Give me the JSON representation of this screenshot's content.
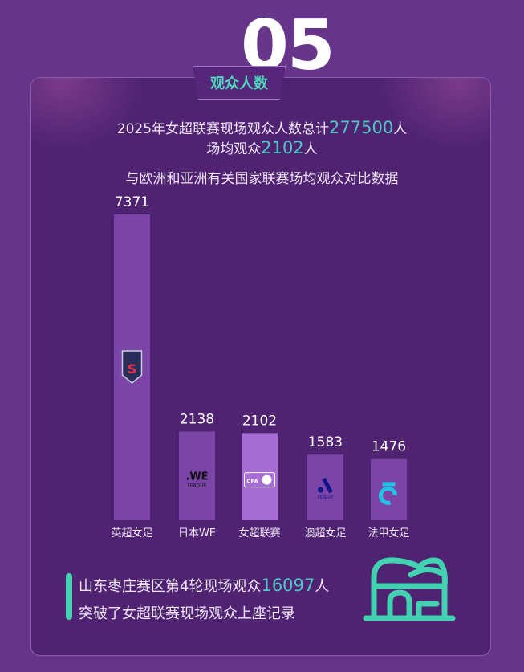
{
  "header": {
    "number": "05",
    "tag": "观众人数"
  },
  "summary": {
    "line1_prefix": "2025年女超联赛现场观众人数总计",
    "line1_value": "277500",
    "line1_suffix": "人",
    "line2_prefix": "场均观众",
    "line2_value": "2102",
    "line2_suffix": "人"
  },
  "colors": {
    "accent": "#4fc7c3",
    "bar": "#7b45a8",
    "bar_highlight": "#a66dd4",
    "background": "#66358a",
    "card": "#4f2372"
  },
  "chart_data": {
    "type": "bar",
    "title": "与欧洲和亚洲有关国家联赛场均观众对比数据",
    "categories": [
      "英超女足",
      "日本WE",
      "女超联赛",
      "澳超女足",
      "法甲女足"
    ],
    "values": [
      7371,
      2138,
      2102,
      1583,
      1476
    ],
    "logos": [
      "wsl-shield-icon",
      "we-league-icon",
      "cfa-league-icon",
      "a-league-women-icon",
      "d1-arkema-icon"
    ],
    "logo_text": [
      "Barclays Women's Super League",
      "WE LEAGUE",
      "CFA",
      "LEAGUE WOMEN",
      ""
    ],
    "highlight_index": 2,
    "ylim": [
      0,
      7371
    ],
    "grid": false
  },
  "footer": {
    "line1_prefix": "山东枣庄赛区第4轮现场观众",
    "line1_value": "16097",
    "line1_suffix": "人",
    "line2": "突破了女超联赛现场观众上座记录",
    "icon": "stadium-icon"
  }
}
